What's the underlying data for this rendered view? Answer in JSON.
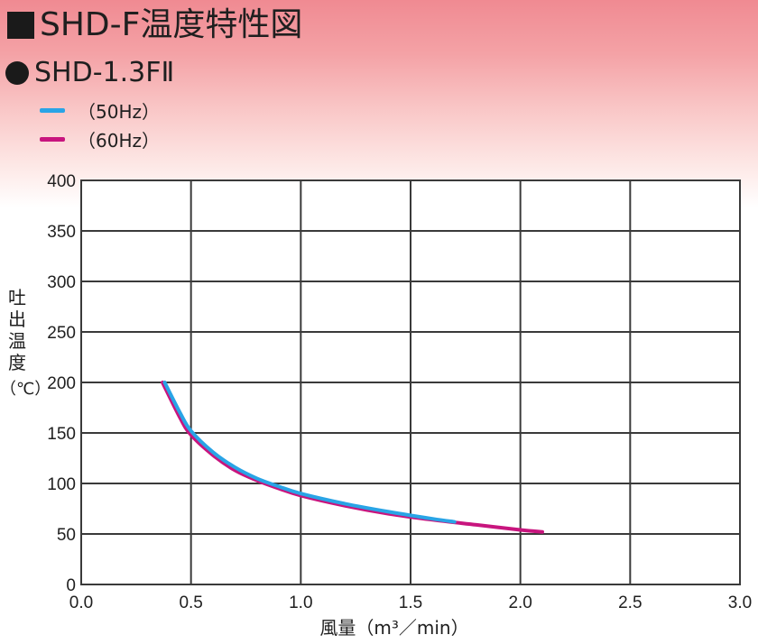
{
  "header": {
    "title": "SHD-F温度特性図",
    "subtitle": "SHD-1.3FⅡ"
  },
  "colors": {
    "series_50hz": "#29a4e6",
    "series_60hz": "#c8157e"
  },
  "chart_data": {
    "type": "line",
    "title": "SHD-F温度特性図",
    "subtitle": "SHD-1.3FⅡ",
    "xlabel": "風量（m³／min）",
    "ylabel": "吐出温度（℃）",
    "xlim": [
      0,
      3.0
    ],
    "ylim": [
      0,
      400
    ],
    "xticks": [
      "0.0",
      "0.5",
      "1.0",
      "1.5",
      "2.0",
      "2.5",
      "3.0"
    ],
    "yticks": [
      "0",
      "50",
      "100",
      "150",
      "200",
      "250",
      "300",
      "350",
      "400"
    ],
    "grid": true,
    "legend_position": "top-left",
    "series": [
      {
        "name": "（60Hz）",
        "x": [
          0.37,
          0.45,
          0.5,
          0.6,
          0.7,
          0.8,
          0.9,
          1.0,
          1.2,
          1.4,
          1.6,
          1.8,
          2.0,
          2.1
        ],
        "y": [
          200,
          165,
          148,
          128,
          113,
          103,
          95,
          88,
          78,
          70,
          64,
          59,
          54,
          52
        ]
      },
      {
        "name": "（50Hz）",
        "x": [
          0.38,
          0.45,
          0.5,
          0.6,
          0.7,
          0.8,
          0.9,
          1.0,
          1.2,
          1.4,
          1.6,
          1.7
        ],
        "y": [
          200,
          170,
          152,
          131,
          116,
          105,
          97,
          90,
          80,
          72,
          65,
          62
        ]
      }
    ]
  }
}
